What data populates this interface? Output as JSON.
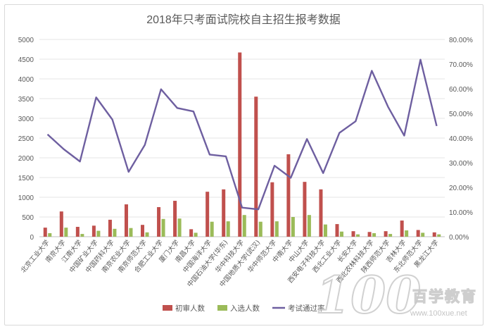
{
  "chart_data": {
    "type": "bar",
    "title": "2018年只考面试院校自主招生报考数据",
    "categories": [
      "北京工业大学",
      "南京大学",
      "江南大学",
      "中国矿业大学",
      "中国药科大学",
      "南京农业大学",
      "南京师范大学",
      "合肥工业大学",
      "厦门大学",
      "南昌大学",
      "中国海洋大学",
      "中国石油大学(华东)",
      "华中科技大学",
      "中国地质大学(武汉)",
      "华中师范大学",
      "中南大学",
      "中山大学",
      "西安电子科技大学",
      "西北工业大学",
      "长安大学",
      "西北农林科技大学",
      "陕西师范大学",
      "吉林大学",
      "东北师范大学",
      "黑龙江大学"
    ],
    "series": [
      {
        "name": "初审人数",
        "color": "#c0504d",
        "axis": "left",
        "values": [
          230,
          640,
          250,
          280,
          430,
          820,
          300,
          750,
          910,
          190,
          1140,
          1200,
          4670,
          3550,
          1380,
          2090,
          1390,
          1200,
          320,
          140,
          120,
          140,
          410,
          170,
          110
        ]
      },
      {
        "name": "入选人数",
        "color": "#9bbb59",
        "axis": "left",
        "values": [
          90,
          230,
          70,
          150,
          200,
          220,
          110,
          450,
          460,
          100,
          380,
          390,
          550,
          380,
          390,
          500,
          550,
          310,
          130,
          60,
          90,
          70,
          160,
          100,
          60
        ]
      },
      {
        "name": "考试通过率",
        "color": "#6e5fa0",
        "axis": "right",
        "type": "line",
        "values": [
          41.5,
          35.5,
          30.5,
          56.5,
          47.5,
          26.3,
          37.2,
          59.8,
          52.2,
          50.8,
          33.3,
          32.6,
          11.8,
          11.1,
          28.8,
          23.9,
          39.6,
          25.8,
          42.1,
          46.8,
          67.3,
          52.7,
          41.0,
          71.8,
          44.9
        ]
      }
    ],
    "y_left": {
      "min": 0,
      "max": 5000,
      "step": 500,
      "ticks": [
        "0",
        "500",
        "1000",
        "1500",
        "2000",
        "2500",
        "3000",
        "3500",
        "4000",
        "4500",
        "5000"
      ]
    },
    "y_right": {
      "min": 0,
      "max": 80,
      "step": 10,
      "ticks": [
        "0.00%",
        "10.00%",
        "20.00%",
        "30.00%",
        "40.00%",
        "50.00%",
        "60.00%",
        "70.00%",
        "80.00%"
      ]
    },
    "grid": true,
    "legend_position": "bottom"
  },
  "watermark": {
    "logo_text": "100",
    "brand": "百学教育",
    "url": "www.100xue.net"
  }
}
